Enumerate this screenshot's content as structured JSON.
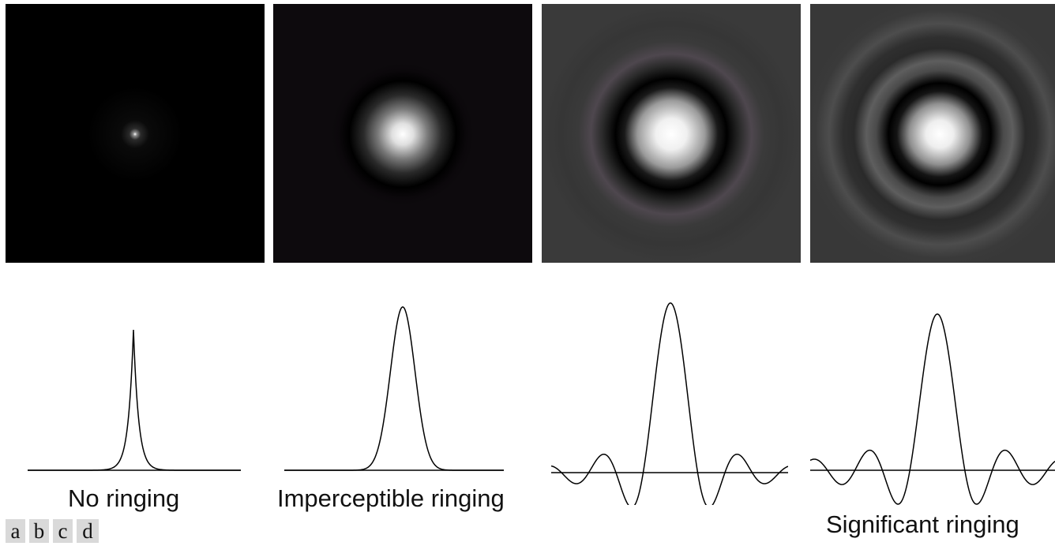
{
  "captions": {
    "a": "No ringing",
    "b": "Imperceptible ringing",
    "d": "Significant ringing"
  },
  "panel_letters": [
    "a",
    "b",
    "c",
    "d"
  ],
  "colors": {
    "panel_a_bg": "#000000",
    "panel_b_bg": "#0d0a0d",
    "panel_c_bg": "#3a3a3a",
    "panel_d_bg": "#383838",
    "curve": "#000000"
  }
}
